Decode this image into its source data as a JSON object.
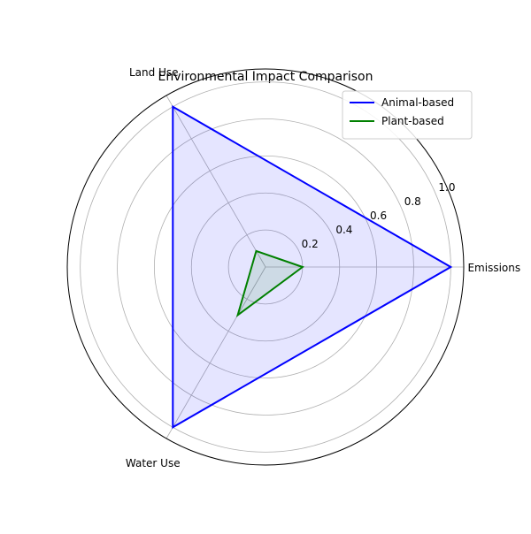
{
  "chart_data": {
    "type": "radar",
    "title": "Environmental Impact Comparison",
    "categories": [
      "Emissions",
      "Land Use",
      "Water Use"
    ],
    "series": [
      {
        "name": "Animal-based",
        "values": [
          1.0,
          1.0,
          1.0
        ],
        "color": "#0000ff",
        "fill": true
      },
      {
        "name": "Plant-based",
        "values": [
          0.2,
          0.1,
          0.3
        ],
        "color": "#008000",
        "fill": true
      }
    ],
    "rlim": [
      0,
      1.07
    ],
    "rticks": [
      0.2,
      0.4,
      0.6,
      0.8,
      1.0
    ],
    "rtick_labels": [
      "0.2",
      "0.4",
      "0.6",
      "0.8",
      "1.0"
    ],
    "grid": true,
    "legend": {
      "position": "upper right"
    }
  }
}
